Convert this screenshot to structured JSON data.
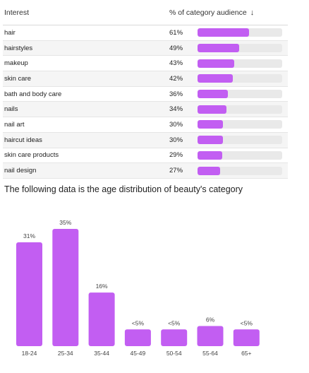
{
  "table": {
    "header": {
      "interest": "Interest",
      "pct": "% of category audience",
      "sort_icon": "↓"
    },
    "rows": [
      {
        "interest": "hair",
        "pct": "61%",
        "value": 61
      },
      {
        "interest": "hairstyles",
        "pct": "49%",
        "value": 49
      },
      {
        "interest": "makeup",
        "pct": "43%",
        "value": 43
      },
      {
        "interest": "skin care",
        "pct": "42%",
        "value": 42
      },
      {
        "interest": "bath and body care",
        "pct": "36%",
        "value": 36
      },
      {
        "interest": "nails",
        "pct": "34%",
        "value": 34
      },
      {
        "interest": "nail art",
        "pct": "30%",
        "value": 30
      },
      {
        "interest": "haircut ideas",
        "pct": "30%",
        "value": 30
      },
      {
        "interest": "skin care products",
        "pct": "29%",
        "value": 29
      },
      {
        "interest": "nail design",
        "pct": "27%",
        "value": 27
      }
    ]
  },
  "caption": "The following data is the age distribution of beauty's category",
  "chart_data": [
    {
      "type": "table",
      "columns": [
        "Interest",
        "% of category audience"
      ],
      "rows": [
        [
          "hair",
          61
        ],
        [
          "hairstyles",
          49
        ],
        [
          "makeup",
          43
        ],
        [
          "skin care",
          42
        ],
        [
          "bath and body care",
          36
        ],
        [
          "nails",
          34
        ],
        [
          "nail art",
          30
        ],
        [
          "haircut ideas",
          30
        ],
        [
          "skin care products",
          29
        ],
        [
          "nail design",
          27
        ]
      ]
    },
    {
      "type": "bar",
      "categories": [
        "18-24",
        "25-34",
        "35-44",
        "45-49",
        "50-54",
        "55-64",
        "65+"
      ],
      "values": [
        31,
        35,
        16,
        5,
        5,
        6,
        5
      ],
      "labels": [
        "31%",
        "35%",
        "16%",
        "<5%",
        "<5%",
        "6%",
        "<5%"
      ],
      "title": "",
      "xlabel": "",
      "ylabel": "",
      "ylim": [
        0,
        35
      ],
      "grid": false,
      "color": "#c25ef2"
    }
  ]
}
